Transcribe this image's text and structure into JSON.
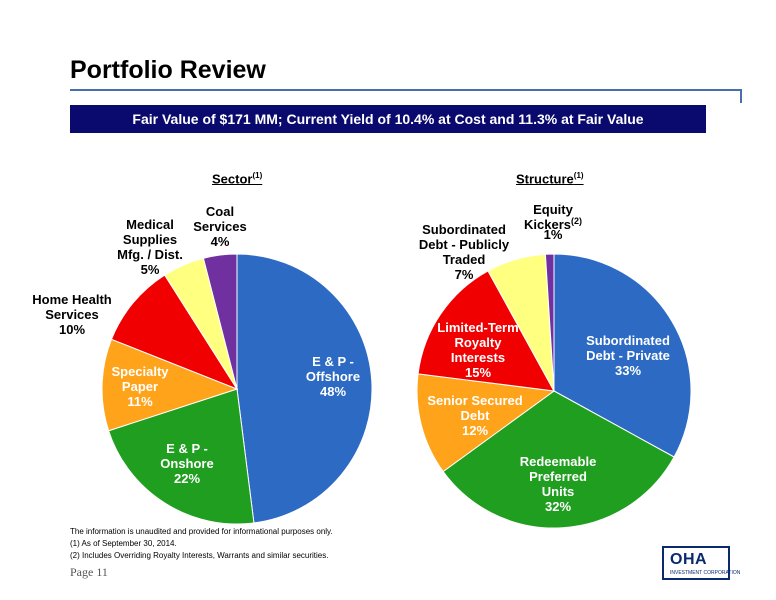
{
  "page": {
    "title": "Portfolio Review",
    "banner": "Fair Value of $171 MM; Current Yield of 10.4% at Cost and 11.3% at Fair Value",
    "footnotes": [
      "The information is unaudited and provided for informational purposes only.",
      "(1)  As of September 30, 2014.",
      "(2)  Includes Overriding Royalty Interests, Warrants and similar securities."
    ],
    "page_number": "Page 11",
    "logo": {
      "main": "OHA",
      "sub": "INVESTMENT CORPORATION"
    }
  },
  "chart_data": [
    {
      "type": "pie",
      "title": "Sector",
      "title_note": "(1)",
      "slices": [
        {
          "label": [
            "E & P -",
            "Offshore"
          ],
          "value": 48,
          "pct": "48%",
          "color": "#2c6ac4"
        },
        {
          "label": [
            "E & P -",
            "Onshore"
          ],
          "value": 22,
          "pct": "22%",
          "color": "#1f9e1f"
        },
        {
          "label": [
            "Specialty",
            "Paper"
          ],
          "value": 11,
          "pct": "11%",
          "color": "#ffa31a"
        },
        {
          "label": [
            "Home Health",
            "Services"
          ],
          "value": 10,
          "pct": "10%",
          "color": "#f00000"
        },
        {
          "label": [
            "Medical",
            "Supplies",
            "Mfg. / Dist."
          ],
          "value": 5,
          "pct": "5%",
          "color": "#ffff80"
        },
        {
          "label": [
            "Coal",
            "Services"
          ],
          "value": 4,
          "pct": "4%",
          "color": "#7030a0"
        }
      ]
    },
    {
      "type": "pie",
      "title": "Structure",
      "title_note": "(1)",
      "slices": [
        {
          "label": [
            "Subordinated",
            "Debt - Private"
          ],
          "value": 33,
          "pct": "33%",
          "color": "#2c6ac4"
        },
        {
          "label": [
            "Redeemable",
            "Preferred",
            "Units"
          ],
          "value": 32,
          "pct": "32%",
          "color": "#1f9e1f"
        },
        {
          "label": [
            "Senior Secured",
            "Debt"
          ],
          "value": 12,
          "pct": "12%",
          "color": "#ffa31a"
        },
        {
          "label": [
            "Limited-Term",
            "Royalty",
            "Interests"
          ],
          "value": 15,
          "pct": "15%",
          "color": "#f00000"
        },
        {
          "label": [
            "Subordinated",
            "Debt - Publicly",
            "Traded"
          ],
          "value": 7,
          "pct": "7%",
          "color": "#ffff80"
        },
        {
          "label": [
            "Equity",
            "Kickers"
          ],
          "label_note": "(2)",
          "value": 1,
          "pct": "1%",
          "color": "#7030a0"
        }
      ]
    }
  ]
}
